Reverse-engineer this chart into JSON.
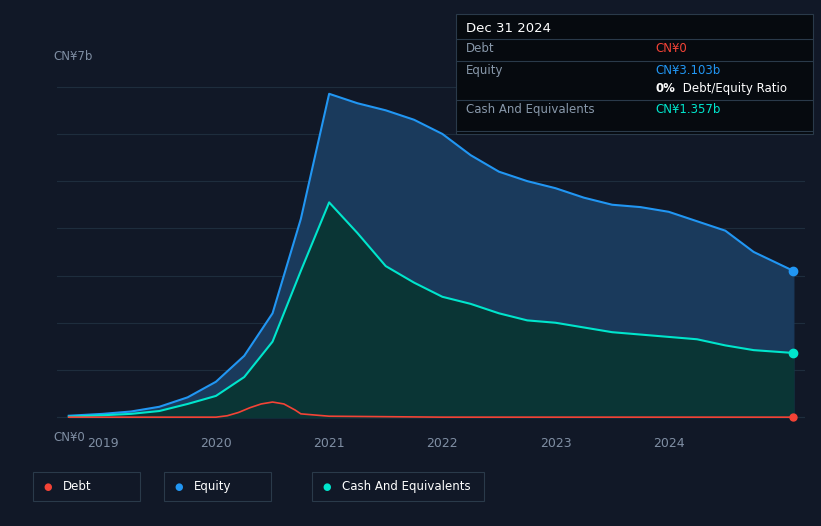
{
  "bg_color": "#111827",
  "plot_bg_color": "#111827",
  "ylabel_top": "CN¥7b",
  "ylabel_bottom": "CN¥0",
  "x_ticks": [
    2019,
    2020,
    2021,
    2022,
    2023,
    2024
  ],
  "x_min": 2018.6,
  "x_max": 2025.2,
  "y_min": -0.3,
  "y_max": 7.5,
  "grid_color": "#1e2d3d",
  "equity_color": "#2196f3",
  "cash_color": "#00e5cc",
  "debt_color": "#f44336",
  "equity_fill": "#1a3a5c",
  "cash_fill": "#0a3535",
  "tooltip": {
    "date": "Dec 31 2024",
    "debt_label": "Debt",
    "debt_value": "CN¥0",
    "debt_color": "#f44336",
    "equity_label": "Equity",
    "equity_value": "CN¥3.103b",
    "equity_color": "#2196f3",
    "ratio_bold": "0%",
    "ratio_rest": " Debt/Equity Ratio",
    "cash_label": "Cash And Equivalents",
    "cash_value": "CN¥1.357b",
    "cash_color": "#00e5cc"
  },
  "legend": [
    {
      "label": "Debt",
      "color": "#f44336"
    },
    {
      "label": "Equity",
      "color": "#2196f3"
    },
    {
      "label": "Cash And Equivalents",
      "color": "#00e5cc"
    }
  ],
  "equity_data": {
    "x": [
      2018.7,
      2019.0,
      2019.25,
      2019.5,
      2019.75,
      2020.0,
      2020.25,
      2020.5,
      2020.75,
      2021.0,
      2021.25,
      2021.5,
      2021.75,
      2022.0,
      2022.25,
      2022.5,
      2022.75,
      2023.0,
      2023.25,
      2023.5,
      2023.75,
      2024.0,
      2024.25,
      2024.5,
      2024.75,
      2025.1
    ],
    "y": [
      0.03,
      0.07,
      0.12,
      0.22,
      0.42,
      0.75,
      1.3,
      2.2,
      4.2,
      6.85,
      6.65,
      6.5,
      6.3,
      6.0,
      5.55,
      5.2,
      5.0,
      4.85,
      4.65,
      4.5,
      4.45,
      4.35,
      4.15,
      3.95,
      3.5,
      3.1
    ]
  },
  "cash_data": {
    "x": [
      2018.7,
      2019.0,
      2019.25,
      2019.5,
      2019.75,
      2020.0,
      2020.25,
      2020.5,
      2020.75,
      2021.0,
      2021.25,
      2021.5,
      2021.75,
      2022.0,
      2022.25,
      2022.5,
      2022.75,
      2023.0,
      2023.25,
      2023.5,
      2023.75,
      2024.0,
      2024.25,
      2024.5,
      2024.75,
      2025.1
    ],
    "y": [
      0.01,
      0.04,
      0.07,
      0.13,
      0.28,
      0.45,
      0.85,
      1.6,
      3.1,
      4.55,
      3.9,
      3.2,
      2.85,
      2.55,
      2.4,
      2.2,
      2.05,
      2.0,
      1.9,
      1.8,
      1.75,
      1.7,
      1.65,
      1.52,
      1.42,
      1.36
    ]
  },
  "debt_data": {
    "x": [
      2018.7,
      2019.0,
      2019.5,
      2020.0,
      2020.1,
      2020.2,
      2020.3,
      2020.4,
      2020.5,
      2020.6,
      2020.7,
      2020.75,
      2021.0,
      2022.0,
      2023.0,
      2024.0,
      2025.1
    ],
    "y": [
      0.0,
      0.0,
      0.0,
      0.0,
      0.03,
      0.1,
      0.2,
      0.28,
      0.32,
      0.28,
      0.15,
      0.07,
      0.02,
      0.0,
      0.0,
      0.0,
      0.0
    ]
  }
}
